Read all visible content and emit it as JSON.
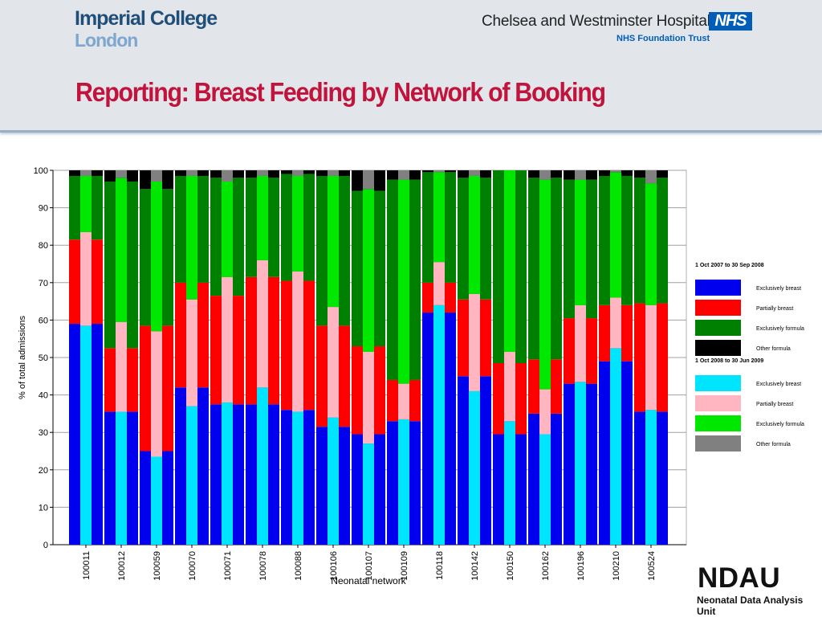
{
  "header": {
    "ic_line1": "Imperial College",
    "ic_line2": "London",
    "hospital_name": "Chelsea and Westminster Hospital",
    "nhs_logo": "NHS",
    "nhs_trust": "NHS Foundation Trust",
    "title": "Reporting: Breast Feeding by Network of Booking"
  },
  "footer": {
    "logo": "NDAU",
    "subtitle": "Neonatal Data Analysis Unit"
  },
  "chart_data": {
    "type": "bar",
    "stacked": true,
    "title": "",
    "xlabel": "Neonatal network",
    "ylabel": "% of total admissions",
    "ylim": [
      0,
      100
    ],
    "yticks": [
      0,
      10,
      20,
      30,
      40,
      50,
      60,
      70,
      80,
      90,
      100
    ],
    "grid": true,
    "legend_position": "right",
    "categories": [
      "100011",
      "100012",
      "100059",
      "100070",
      "100071",
      "100078",
      "100088",
      "100106",
      "100107",
      "100109",
      "100118",
      "100142",
      "100150",
      "100162",
      "100196",
      "100210",
      "100524"
    ],
    "periods": [
      {
        "label": "1 Oct 2007 to 30 Sep 2008",
        "series": [
          {
            "name": "Exclusively breast",
            "color": "#0000ee",
            "values": [
              59,
              35.5,
              25,
              42,
              37.5,
              37.5,
              36,
              31.5,
              29.5,
              33,
              62,
              45,
              29.5,
              35,
              43,
              49,
              35.5
            ]
          },
          {
            "name": "Partially breast",
            "color": "#ff0000",
            "values": [
              22.5,
              17,
              33.5,
              28,
              29,
              34,
              34.5,
              27,
              23.5,
              11,
              8,
              20.5,
              19,
              14.5,
              17.5,
              15,
              29
            ]
          },
          {
            "name": "Exclusively formula",
            "color": "#008000",
            "values": [
              17,
              44.5,
              36.5,
              28.5,
              31.5,
              26.5,
              28.5,
              40,
              41.5,
              53.5,
              29.5,
              32.5,
              51.5,
              48.5,
              37,
              34.5,
              33.5
            ]
          },
          {
            "name": "Other formula",
            "color": "#000000",
            "values": [
              1.5,
              3,
              5,
              1.5,
              2,
              2,
              1,
              1.5,
              5.5,
              2.5,
              0.5,
              2,
              0,
              2,
              2.5,
              1.5,
              2
            ]
          }
        ]
      },
      {
        "label": "1 Oct 2008 to 30 Jun 2009",
        "series": [
          {
            "name": "Exclusively breast",
            "color": "#00e5ff",
            "values": [
              58.5,
              35.5,
              23.5,
              37,
              38,
              42,
              35.5,
              34,
              27,
              33.5,
              64,
              41,
              33,
              29.5,
              43.5,
              52.5,
              36
            ]
          },
          {
            "name": "Partially breast",
            "color": "#ffb6c1",
            "values": [
              25,
              24,
              33.5,
              28.5,
              33.5,
              34,
              37.5,
              29.5,
              24.5,
              9.5,
              11.5,
              26,
              18.5,
              12,
              20.5,
              13.5,
              28
            ]
          },
          {
            "name": "Exclusively formula",
            "color": "#00e800",
            "values": [
              15,
              38.5,
              40,
              33,
              25.5,
              22.5,
              25.5,
              35,
              43.5,
              54.5,
              24,
              31.5,
              48.5,
              56,
              33.5,
              33.5,
              32.5
            ]
          },
          {
            "name": "Other formula",
            "color": "#808080",
            "values": [
              1.5,
              2,
              3,
              1.5,
              3,
              1.5,
              1.5,
              1.5,
              5,
              2.5,
              0.5,
              1.5,
              0,
              2.5,
              2.5,
              0.5,
              3.5
            ]
          }
        ]
      }
    ]
  }
}
